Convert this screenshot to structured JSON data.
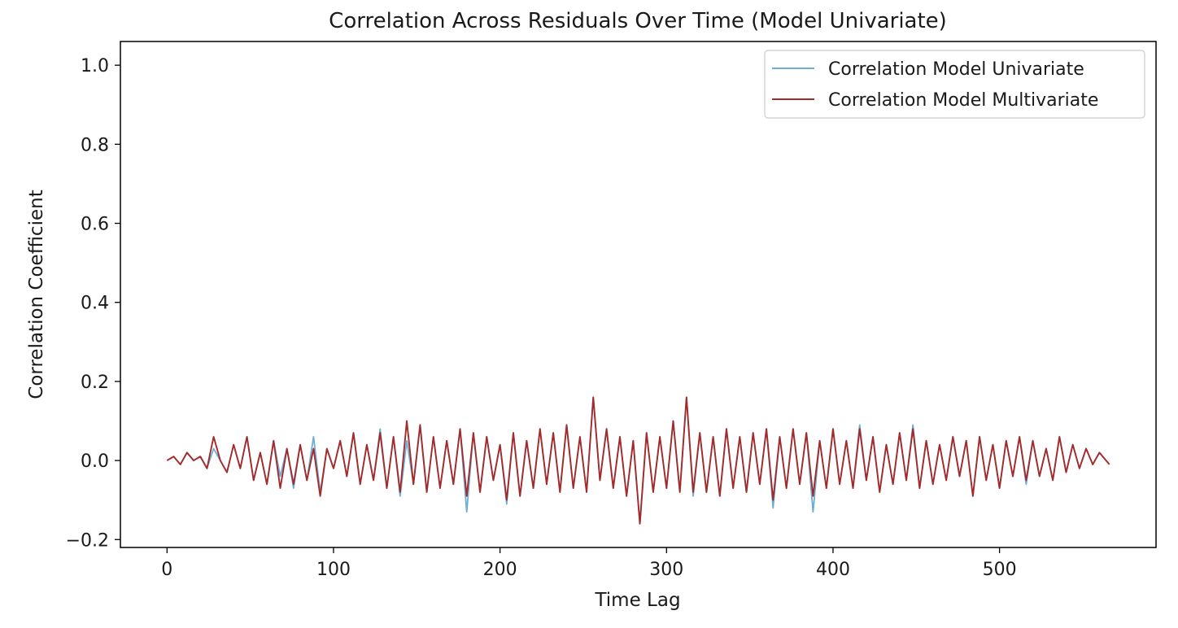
{
  "chart_data": {
    "type": "line",
    "title": "Correlation Across Residuals Over Time (Model Univariate)",
    "xlabel": "Time Lag",
    "ylabel": "Correlation Coefficient",
    "xlim": [
      -28,
      594
    ],
    "ylim": [
      -0.22,
      1.06
    ],
    "xticks": [
      0,
      100,
      200,
      300,
      400,
      500
    ],
    "yticks": [
      -0.2,
      0.0,
      0.2,
      0.4,
      0.6,
      0.8,
      1.0
    ],
    "ytick_labels": [
      "−0.2",
      "0.0",
      "0.2",
      "0.4",
      "0.6",
      "0.8",
      "1.0"
    ],
    "grid": false,
    "legend_position": "top-right",
    "x_range": [
      0,
      566
    ],
    "series": [
      {
        "name": "Correlation Model Univariate",
        "color": "#6baed6",
        "x": [
          0,
          4,
          8,
          12,
          16,
          20,
          24,
          28,
          32,
          36,
          40,
          44,
          48,
          52,
          56,
          60,
          64,
          68,
          72,
          76,
          80,
          84,
          88,
          92,
          96,
          100,
          104,
          108,
          112,
          116,
          120,
          124,
          128,
          132,
          136,
          140,
          144,
          148,
          152,
          156,
          160,
          164,
          168,
          172,
          176,
          180,
          184,
          188,
          192,
          196,
          200,
          204,
          208,
          212,
          216,
          220,
          224,
          228,
          232,
          236,
          240,
          244,
          248,
          252,
          256,
          260,
          264,
          268,
          272,
          276,
          280,
          284,
          288,
          292,
          296,
          300,
          304,
          308,
          312,
          316,
          320,
          324,
          328,
          332,
          336,
          340,
          344,
          348,
          352,
          356,
          360,
          364,
          368,
          372,
          376,
          380,
          384,
          388,
          392,
          396,
          400,
          404,
          408,
          412,
          416,
          420,
          424,
          428,
          432,
          436,
          440,
          444,
          448,
          452,
          456,
          460,
          464,
          468,
          472,
          476,
          480,
          484,
          488,
          492,
          496,
          500,
          504,
          508,
          512,
          516,
          520,
          524,
          528,
          532,
          536,
          540,
          544,
          548,
          552,
          556,
          560,
          566
        ],
        "values": [
          0.0,
          0.01,
          -0.01,
          0.02,
          0.0,
          0.01,
          -0.02,
          0.03,
          0.0,
          -0.03,
          0.04,
          -0.02,
          0.06,
          -0.05,
          0.02,
          -0.06,
          0.05,
          -0.04,
          0.03,
          -0.07,
          0.04,
          -0.05,
          0.06,
          -0.08,
          0.03,
          -0.02,
          0.05,
          -0.04,
          0.07,
          -0.06,
          0.04,
          -0.05,
          0.08,
          -0.07,
          0.06,
          -0.09,
          0.05,
          -0.06,
          0.09,
          -0.08,
          0.06,
          -0.07,
          0.05,
          -0.06,
          0.08,
          -0.13,
          0.07,
          -0.08,
          0.06,
          -0.05,
          0.04,
          -0.11,
          0.07,
          -0.09,
          0.05,
          -0.07,
          0.08,
          -0.06,
          0.07,
          -0.08,
          0.09,
          -0.07,
          0.06,
          -0.08,
          0.16,
          -0.05,
          0.08,
          -0.07,
          0.06,
          -0.09,
          0.05,
          -0.16,
          0.07,
          -0.08,
          0.06,
          -0.07,
          0.1,
          -0.08,
          0.16,
          -0.09,
          0.07,
          -0.08,
          0.06,
          -0.09,
          0.08,
          -0.07,
          0.06,
          -0.08,
          0.07,
          -0.06,
          0.08,
          -0.12,
          0.06,
          -0.07,
          0.08,
          -0.06,
          0.07,
          -0.13,
          0.05,
          -0.07,
          0.08,
          -0.06,
          0.05,
          -0.07,
          0.09,
          -0.05,
          0.06,
          -0.08,
          0.04,
          -0.06,
          0.07,
          -0.05,
          0.09,
          -0.07,
          0.05,
          -0.06,
          0.04,
          -0.05,
          0.06,
          -0.04,
          0.05,
          -0.09,
          0.06,
          -0.05,
          0.04,
          -0.07,
          0.05,
          -0.04,
          0.06,
          -0.06,
          0.05,
          -0.04,
          0.03,
          -0.05,
          0.06,
          -0.03,
          0.04,
          -0.02,
          0.03,
          -0.01,
          0.02,
          -0.01
        ]
      },
      {
        "name": "Correlation Model Multivariate",
        "color": "#a52a2a",
        "x": [
          0,
          4,
          8,
          12,
          16,
          20,
          24,
          28,
          32,
          36,
          40,
          44,
          48,
          52,
          56,
          60,
          64,
          68,
          72,
          76,
          80,
          84,
          88,
          92,
          96,
          100,
          104,
          108,
          112,
          116,
          120,
          124,
          128,
          132,
          136,
          140,
          144,
          148,
          152,
          156,
          160,
          164,
          168,
          172,
          176,
          180,
          184,
          188,
          192,
          196,
          200,
          204,
          208,
          212,
          216,
          220,
          224,
          228,
          232,
          236,
          240,
          244,
          248,
          252,
          256,
          260,
          264,
          268,
          272,
          276,
          280,
          284,
          288,
          292,
          296,
          300,
          304,
          308,
          312,
          316,
          320,
          324,
          328,
          332,
          336,
          340,
          344,
          348,
          352,
          356,
          360,
          364,
          368,
          372,
          376,
          380,
          384,
          388,
          392,
          396,
          400,
          404,
          408,
          412,
          416,
          420,
          424,
          428,
          432,
          436,
          440,
          444,
          448,
          452,
          456,
          460,
          464,
          468,
          472,
          476,
          480,
          484,
          488,
          492,
          496,
          500,
          504,
          508,
          512,
          516,
          520,
          524,
          528,
          532,
          536,
          540,
          544,
          548,
          552,
          556,
          560,
          566
        ],
        "values": [
          0.0,
          0.01,
          -0.01,
          0.02,
          0.0,
          0.01,
          -0.02,
          0.06,
          0.0,
          -0.03,
          0.04,
          -0.02,
          0.06,
          -0.05,
          0.02,
          -0.06,
          0.05,
          -0.07,
          0.03,
          -0.06,
          0.04,
          -0.05,
          0.03,
          -0.09,
          0.03,
          -0.02,
          0.05,
          -0.04,
          0.07,
          -0.06,
          0.04,
          -0.05,
          0.07,
          -0.07,
          0.06,
          -0.08,
          0.1,
          -0.06,
          0.09,
          -0.08,
          0.06,
          -0.07,
          0.05,
          -0.06,
          0.08,
          -0.09,
          0.07,
          -0.08,
          0.06,
          -0.05,
          0.04,
          -0.1,
          0.07,
          -0.09,
          0.05,
          -0.07,
          0.08,
          -0.06,
          0.07,
          -0.08,
          0.09,
          -0.07,
          0.06,
          -0.08,
          0.16,
          -0.05,
          0.08,
          -0.07,
          0.06,
          -0.09,
          0.05,
          -0.16,
          0.07,
          -0.08,
          0.06,
          -0.07,
          0.1,
          -0.08,
          0.16,
          -0.08,
          0.07,
          -0.08,
          0.06,
          -0.09,
          0.08,
          -0.07,
          0.06,
          -0.08,
          0.07,
          -0.06,
          0.08,
          -0.1,
          0.06,
          -0.07,
          0.08,
          -0.06,
          0.07,
          -0.09,
          0.05,
          -0.07,
          0.08,
          -0.06,
          0.05,
          -0.07,
          0.08,
          -0.05,
          0.06,
          -0.08,
          0.04,
          -0.06,
          0.07,
          -0.05,
          0.08,
          -0.07,
          0.05,
          -0.06,
          0.04,
          -0.05,
          0.06,
          -0.04,
          0.05,
          -0.09,
          0.06,
          -0.05,
          0.04,
          -0.07,
          0.05,
          -0.04,
          0.06,
          -0.05,
          0.05,
          -0.04,
          0.03,
          -0.05,
          0.06,
          -0.03,
          0.04,
          -0.02,
          0.03,
          -0.01,
          0.02,
          -0.01
        ]
      }
    ]
  }
}
